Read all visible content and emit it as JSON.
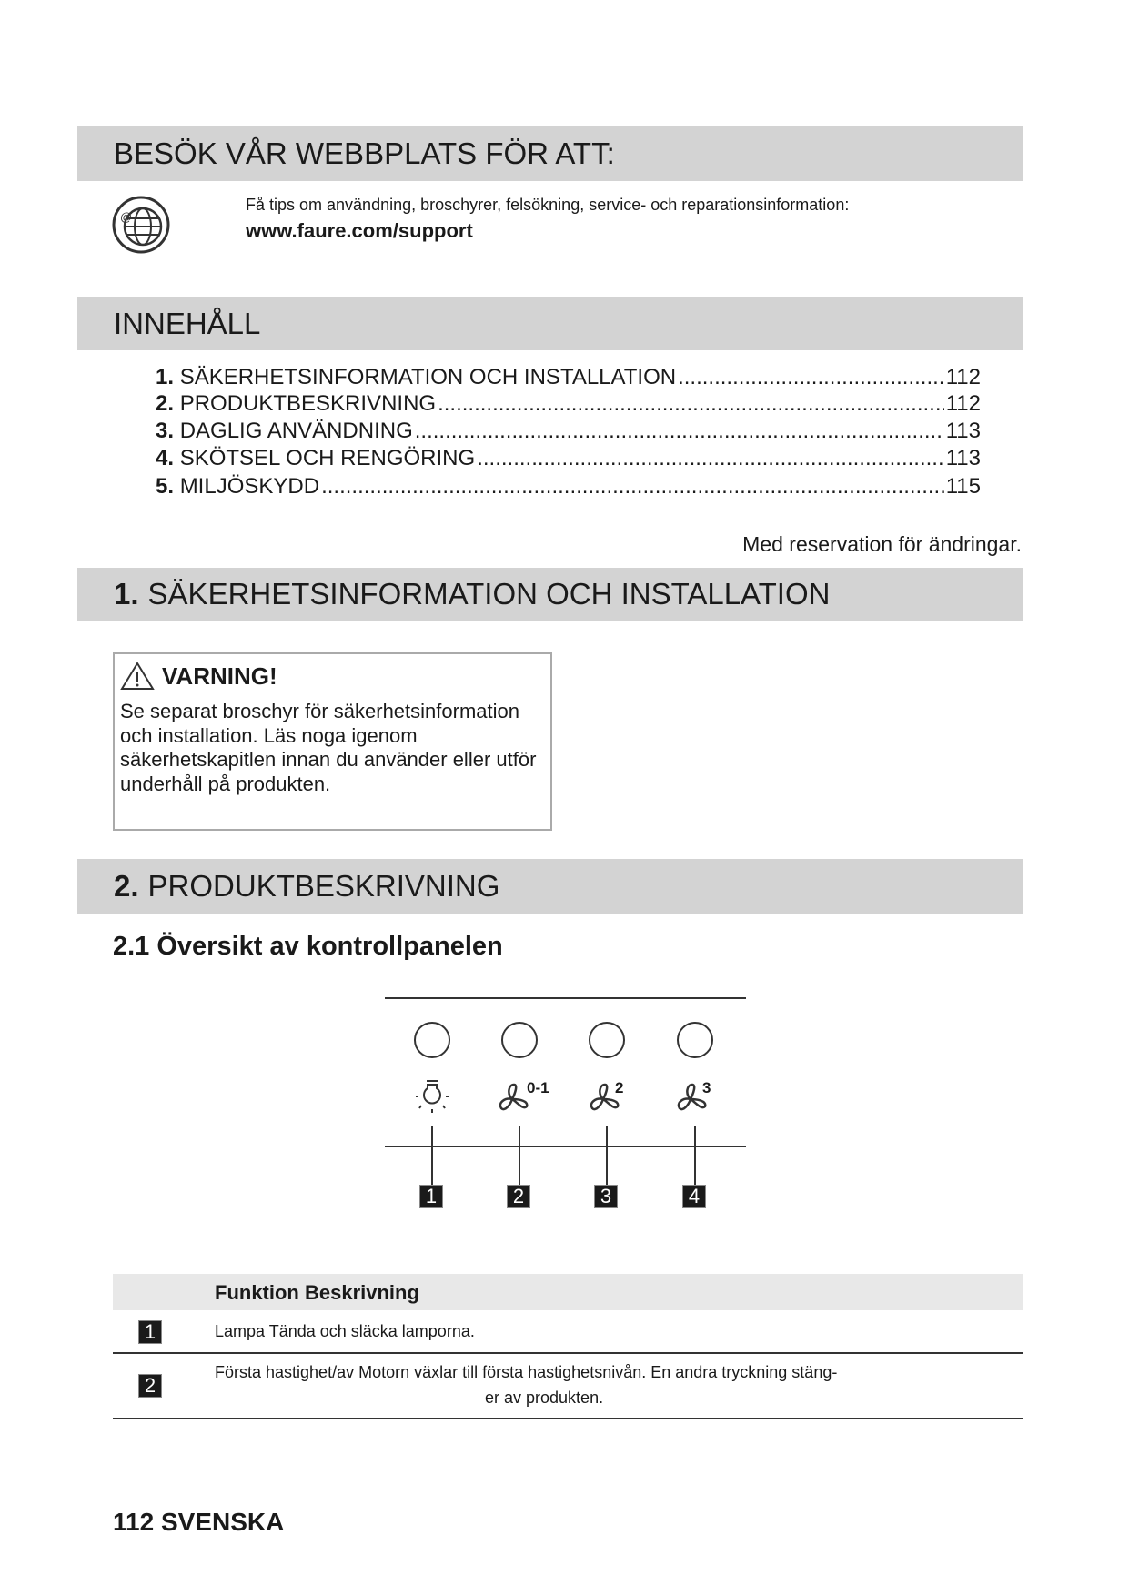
{
  "website_section": {
    "heading": "BESÖK VÅR WEBBPLATS FÖR ATT:",
    "icon": "globe-at-icon",
    "text": "Få tips om användning, broschyrer, felsökning, service- och reparationsinformation:",
    "url": "www.faure.com/support"
  },
  "contents": {
    "heading": "INNEHÅLL",
    "items": [
      {
        "num": "1.",
        "title": "SÄKERHETSINFORMATION OCH INSTALLATION",
        "page": "112"
      },
      {
        "num": "2.",
        "title": "PRODUKTBESKRIVNING",
        "page": "112"
      },
      {
        "num": "3.",
        "title": "DAGLIG ANVÄNDNING",
        "page": "113"
      },
      {
        "num": "4.",
        "title": "SKÖTSEL OCH RENGÖRING",
        "page": "113"
      },
      {
        "num": "5.",
        "title": "MILJÖSKYDD",
        "page": "115"
      }
    ],
    "note": "Med reservation för ändringar."
  },
  "section1": {
    "num": "1.",
    "title": "SÄKERHETSINFORMATION OCH INSTALLATION"
  },
  "warning": {
    "icon": "warning-triangle-icon",
    "title": "VARNING!",
    "text": "Se separat broschyr för säkerhetsinformation och installation. Läs noga igenom säkerhetskapitlen innan du använder eller utför underhåll på produkten."
  },
  "section2": {
    "num": "2.",
    "title": "PRODUKTBESKRIVNING",
    "subheading": "2.1 Översikt av kontrollpanelen"
  },
  "panel": {
    "buttons": [
      {
        "icon": "lamp-icon",
        "sup": "",
        "label": "1"
      },
      {
        "icon": "fan-icon",
        "sup": "0-1",
        "label": "2"
      },
      {
        "icon": "fan-icon",
        "sup": "2",
        "label": "3"
      },
      {
        "icon": "fan-icon",
        "sup": "3",
        "label": "4"
      }
    ]
  },
  "table": {
    "header": "Funktion Beskrivning",
    "rows": [
      {
        "num": "1",
        "text": "Lampa Tända och släcka lamporna."
      },
      {
        "num": "2",
        "text": "Första hastighet/av Motorn växlar till första hastighetsnivån. En andra tryckning stäng-",
        "text2": "er av produkten."
      }
    ]
  },
  "footer": "112 SVENSKA"
}
